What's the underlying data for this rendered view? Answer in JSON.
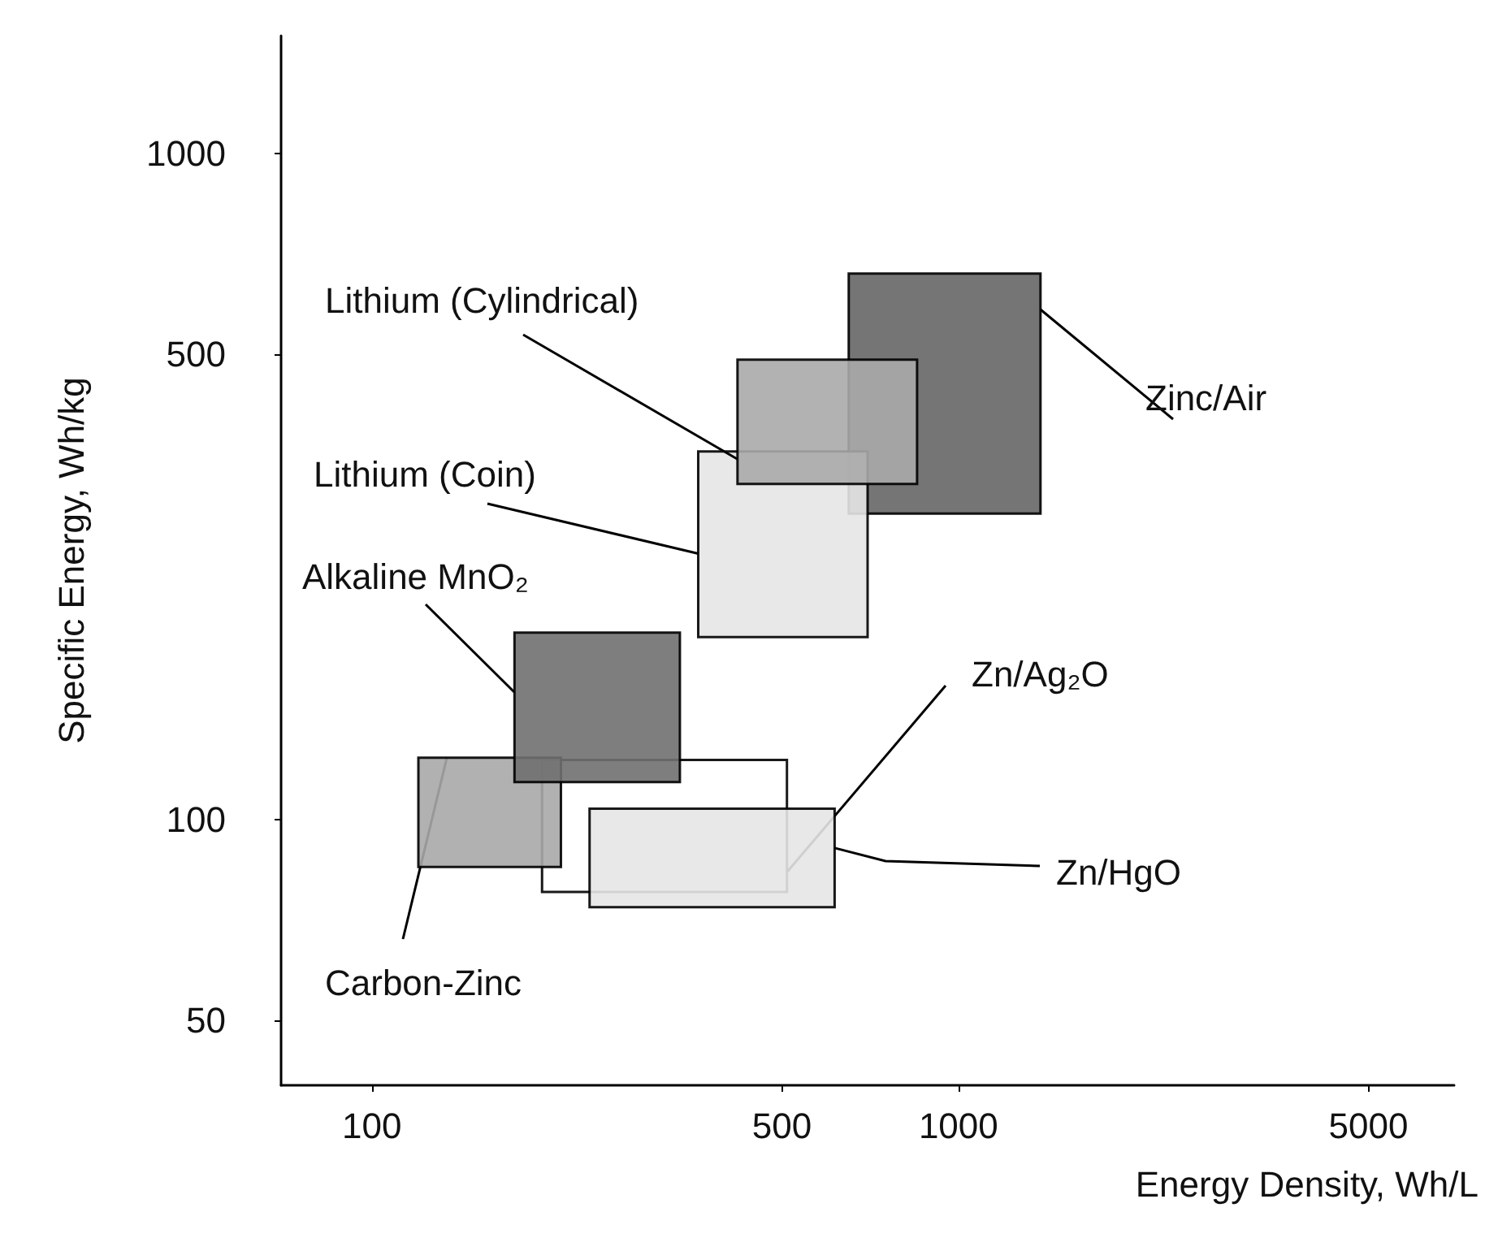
{
  "chart_data": {
    "type": "area",
    "xlabel": "Energy Density, Wh/L",
    "ylabel": "Specific Energy, Wh/kg",
    "log": "xy",
    "grid": false,
    "legend": false,
    "xlim": [
      70,
      7000
    ],
    "xticks": [
      100,
      500,
      1000,
      5000
    ],
    "ylim": [
      40,
      1500
    ],
    "yticks": [
      50,
      100,
      500,
      1000
    ],
    "series": [
      {
        "name": "Zn/Ag₂O",
        "color": "#ffffff",
        "x": [
          195,
          510
        ],
        "values": [
          78,
          123
        ]
      },
      {
        "name": "Carbon-Zinc",
        "color": "#a8a8a8",
        "x": [
          120,
          210
        ],
        "values": [
          85,
          124
        ]
      },
      {
        "name": "Alkaline MnO₂",
        "color": "#707070",
        "x": [
          175,
          335
        ],
        "values": [
          114,
          191
        ]
      },
      {
        "name": "Zn/HgO",
        "color": "#e6e6e6",
        "x": [
          235,
          615
        ],
        "values": [
          74,
          104
        ]
      },
      {
        "name": "Zinc/Air",
        "color": "#666666",
        "x": [
          650,
          1380
        ],
        "values": [
          288,
          660
        ]
      },
      {
        "name": "Lithium (Coin)",
        "color": "#e6e6e6",
        "x": [
          360,
          700
        ],
        "values": [
          188,
          357
        ]
      },
      {
        "name": "Lithium (Cylindrical)",
        "color": "#aaaaaa",
        "x": [
          420,
          850
        ],
        "values": [
          319,
          490
        ]
      }
    ]
  }
}
